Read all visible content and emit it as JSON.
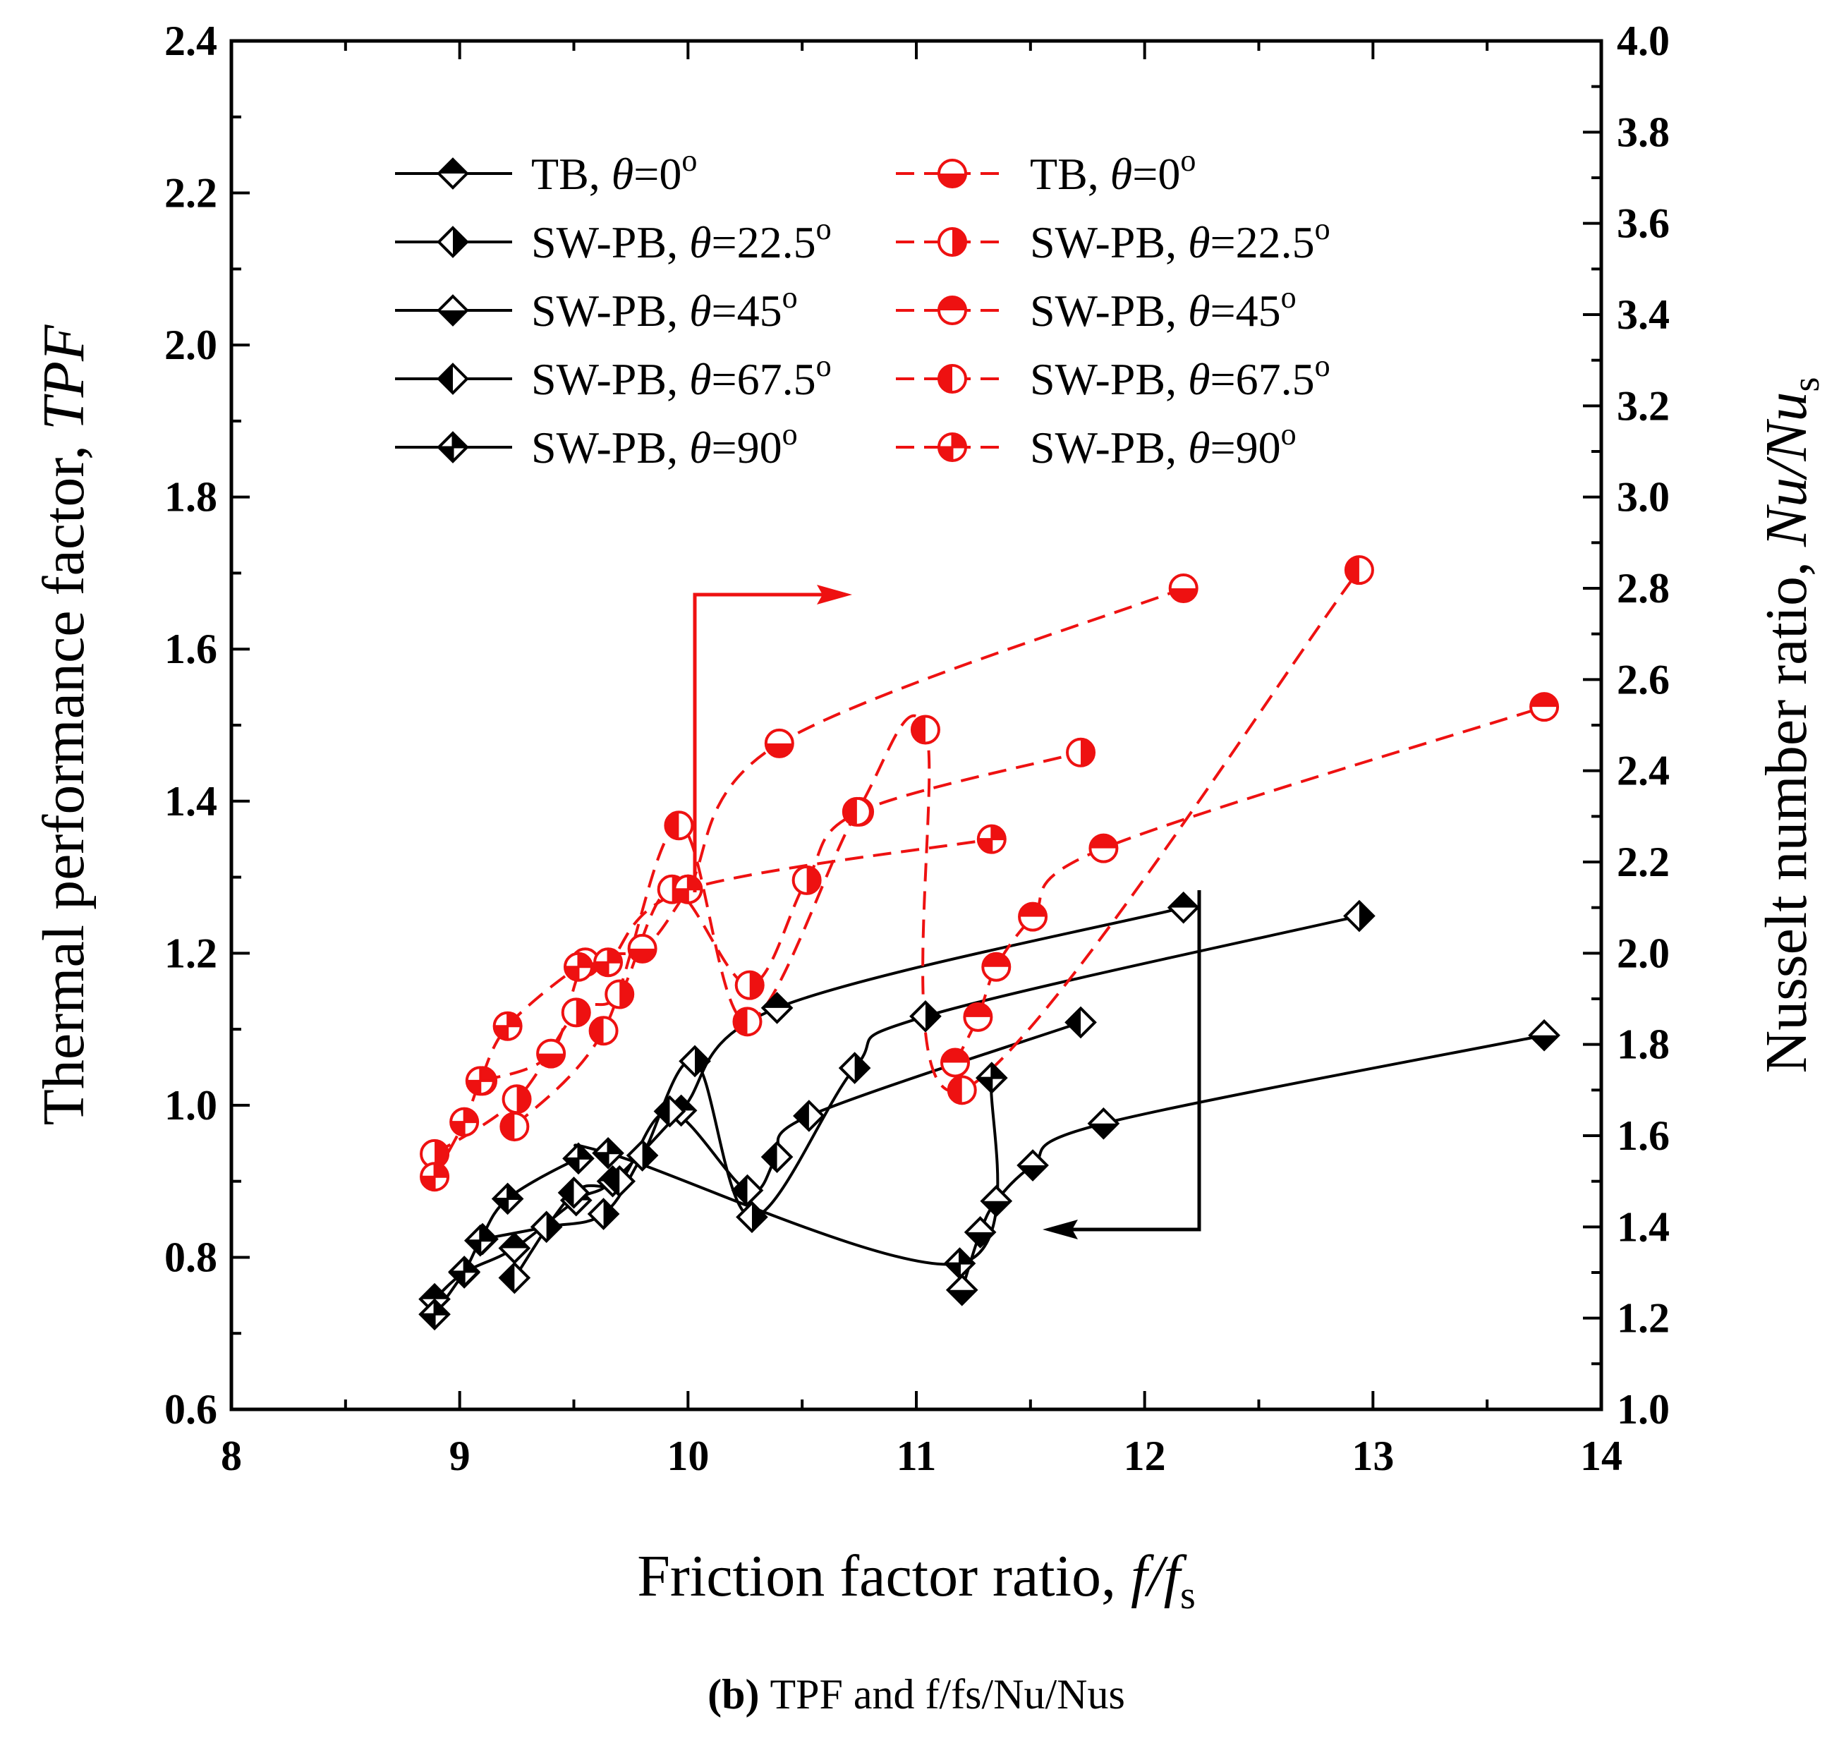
{
  "chart_data": {
    "type": "scatter",
    "title": "",
    "xlabel": "Friction factor ratio, f/fs",
    "ylabel": "Thermal performance factor, TPF",
    "y2label": "Nusselt number ratio, Nu/Nus",
    "xlim": [
      8,
      14
    ],
    "ylim": [
      0.6,
      2.4
    ],
    "y2lim": [
      1.0,
      4.0
    ],
    "x_ticks": [
      "8",
      "9",
      "10",
      "11",
      "12",
      "13",
      "14"
    ],
    "y_ticks": [
      "0.6",
      "0.8",
      "1.0",
      "1.2",
      "1.4",
      "1.6",
      "1.8",
      "2.0",
      "2.2",
      "2.4"
    ],
    "y2_ticks": [
      "1.0",
      "1.2",
      "1.4",
      "1.6",
      "1.8",
      "2.0",
      "2.2",
      "2.4",
      "2.6",
      "2.8",
      "3.0",
      "3.2",
      "3.4",
      "3.6",
      "3.8",
      "4.0"
    ],
    "grid": false,
    "legend_position": "top-left",
    "caption": {
      "bold": "(b)",
      "rest": "TPF and f/fs/Nu/Nus"
    },
    "colors": {
      "tpf": "#000000",
      "nu": "#ee1111"
    },
    "series": [
      {
        "name": "TB, θ=0o",
        "axis": "left",
        "marker": "diamond",
        "fill": "top",
        "line": "solid",
        "x": [
          8.89,
          9.02,
          9.24,
          9.51,
          9.67,
          9.97,
          10.39,
          12.17
        ],
        "y": [
          0.745,
          0.78,
          0.812,
          0.875,
          0.9,
          0.993,
          1.128,
          1.26
        ]
      },
      {
        "name": "SW-PB, θ=22.5o",
        "axis": "left",
        "marker": "diamond",
        "fill": "right",
        "line": "solid",
        "x": [
          9.1,
          9.38,
          9.63,
          9.8,
          10.03,
          10.28,
          10.73,
          11.04,
          12.94
        ],
        "y": [
          0.824,
          0.84,
          0.857,
          0.934,
          1.058,
          0.853,
          1.049,
          1.117,
          1.249
        ]
      },
      {
        "name": "SW-PB, θ=45o",
        "axis": "left",
        "marker": "diamond",
        "fill": "bottom",
        "line": "solid",
        "x": [
          11.2,
          11.28,
          11.35,
          11.51,
          11.82,
          13.75
        ],
        "y": [
          0.757,
          0.833,
          0.874,
          0.921,
          0.976,
          1.092
        ]
      },
      {
        "name": "SW-PB, θ=67.5o",
        "axis": "left",
        "marker": "diamond",
        "fill": "left",
        "line": "solid",
        "x": [
          9.24,
          9.5,
          9.7,
          9.92,
          10.26,
          10.39,
          10.53,
          11.72
        ],
        "y": [
          0.773,
          0.885,
          0.9,
          0.992,
          0.888,
          0.932,
          0.986,
          1.109
        ]
      },
      {
        "name": "SW-PB, θ=90o",
        "axis": "left",
        "marker": "diamond",
        "fill": "cross",
        "line": "solid",
        "x": [
          8.89,
          9.02,
          9.09,
          9.21,
          9.52,
          9.65,
          11.19,
          11.33
        ],
        "y": [
          0.725,
          0.781,
          0.822,
          0.877,
          0.93,
          0.937,
          0.792,
          1.036
        ]
      },
      {
        "name": "TB, θ=0o",
        "axis": "right",
        "marker": "circle",
        "fill": "bottom",
        "line": "dashed",
        "x": [
          9.1,
          9.4,
          9.55,
          9.8,
          10.0,
          10.4,
          12.17
        ],
        "y": [
          1.72,
          1.78,
          1.98,
          2.01,
          2.14,
          2.46,
          2.8
        ]
      },
      {
        "name": "SW-PB, θ=22.5o",
        "axis": "right",
        "marker": "circle",
        "fill": "right",
        "line": "dashed",
        "x": [
          8.89,
          9.25,
          9.51,
          9.7,
          9.93,
          10.27,
          10.52,
          10.75,
          11.72
        ],
        "y": [
          1.56,
          1.68,
          1.87,
          1.91,
          2.14,
          1.93,
          2.16,
          2.31,
          2.44
        ]
      },
      {
        "name": "SW-PB, θ=45o",
        "axis": "right",
        "marker": "circle",
        "fill": "top",
        "line": "dashed",
        "x": [
          11.17,
          11.27,
          11.35,
          11.51,
          11.82,
          13.75
        ],
        "y": [
          1.76,
          1.86,
          1.97,
          2.08,
          2.23,
          2.54
        ]
      },
      {
        "name": "SW-PB, θ=67.5o",
        "axis": "right",
        "marker": "circle",
        "fill": "left",
        "line": "dashed",
        "x": [
          9.24,
          9.63,
          9.96,
          10.26,
          10.74,
          11.04,
          11.2,
          12.94
        ],
        "y": [
          1.62,
          1.83,
          2.28,
          1.85,
          2.31,
          2.49,
          1.7,
          2.84
        ]
      },
      {
        "name": "SW-PB, θ=90o",
        "axis": "right",
        "marker": "circle",
        "fill": "cross",
        "line": "dashed",
        "x": [
          8.89,
          9.02,
          9.09,
          9.21,
          9.52,
          9.65,
          10.0,
          11.33
        ],
        "y": [
          1.51,
          1.63,
          1.72,
          1.84,
          1.97,
          1.98,
          2.14,
          2.25
        ]
      }
    ],
    "annotations": [
      {
        "text": "arrow pointing to right axis",
        "color": "red"
      },
      {
        "text": "arrow pointing to left axis",
        "color": "black"
      }
    ]
  }
}
